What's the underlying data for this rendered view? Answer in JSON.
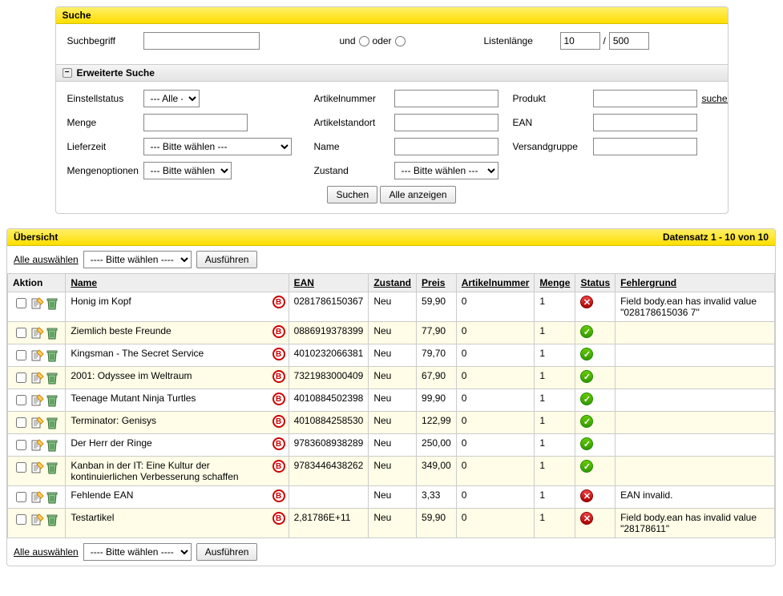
{
  "search": {
    "title": "Suche",
    "term_label": "Suchbegriff",
    "and_label": "und",
    "or_label": "oder",
    "listlen_label": "Listenlänge",
    "listlen_value": "10",
    "listlen_sep": "/",
    "listlen_max": "500",
    "adv_title": "Erweiterte Suche",
    "einstellstatus_label": "Einstellstatus",
    "einstellstatus_value": "--- Alle ----",
    "menge_label": "Menge",
    "lieferzeit_label": "Lieferzeit",
    "lieferzeit_value": "--- Bitte wählen ---",
    "mengenopt_label": "Mengenoptionen",
    "mengenopt_value": "--- Bitte wählen ---",
    "artikelnummer_label": "Artikelnummer",
    "artikelstandort_label": "Artikelstandort",
    "name_label": "Name",
    "zustand_label": "Zustand",
    "zustand_value": "--- Bitte wählen ---",
    "produkt_label": "Produkt",
    "ean_label": "EAN",
    "versandgruppe_label": "Versandgruppe",
    "suchen_link": "suchen",
    "btn_suchen": "Suchen",
    "btn_alle": "Alle anzeigen"
  },
  "overview": {
    "title": "Übersicht",
    "record_info": "Datensatz 1 - 10 von 10",
    "select_all": "Alle auswählen",
    "bulk_placeholder": "---- Bitte wählen ----",
    "btn_exec": "Ausführen",
    "cols": {
      "aktion": "Aktion",
      "name": "Name",
      "ean": "EAN",
      "zustand": "Zustand",
      "preis": "Preis",
      "artnr": "Artikelnummer",
      "menge": "Menge",
      "status": "Status",
      "fehler": "Fehlergrund"
    },
    "rows": [
      {
        "name": "Honig im Kopf",
        "ean": "0281786150367",
        "zustand": "Neu",
        "preis": "59,90",
        "artnr": "0",
        "menge": "1",
        "status": "err",
        "fehler": "Field body.ean has invalid value \"028178615036 7\""
      },
      {
        "name": "Ziemlich beste Freunde",
        "ean": "0886919378399",
        "zustand": "Neu",
        "preis": "77,90",
        "artnr": "0",
        "menge": "1",
        "status": "ok",
        "fehler": ""
      },
      {
        "name": "Kingsman - The Secret Service",
        "ean": "4010232066381",
        "zustand": "Neu",
        "preis": "79,70",
        "artnr": "0",
        "menge": "1",
        "status": "ok",
        "fehler": ""
      },
      {
        "name": "2001: Odyssee im Weltraum",
        "ean": "7321983000409",
        "zustand": "Neu",
        "preis": "67,90",
        "artnr": "0",
        "menge": "1",
        "status": "ok",
        "fehler": ""
      },
      {
        "name": "Teenage Mutant Ninja Turtles",
        "ean": "4010884502398",
        "zustand": "Neu",
        "preis": "99,90",
        "artnr": "0",
        "menge": "1",
        "status": "ok",
        "fehler": ""
      },
      {
        "name": "Terminator: Genisys",
        "ean": "4010884258530",
        "zustand": "Neu",
        "preis": "122,99",
        "artnr": "0",
        "menge": "1",
        "status": "ok",
        "fehler": ""
      },
      {
        "name": "Der Herr der Ringe",
        "ean": "9783608938289",
        "zustand": "Neu",
        "preis": "250,00",
        "artnr": "0",
        "menge": "1",
        "status": "ok",
        "fehler": ""
      },
      {
        "name": "Kanban in der IT: Eine Kultur der kontinuierlichen Verbesserung schaffen",
        "ean": "9783446438262",
        "zustand": "Neu",
        "preis": "349,00",
        "artnr": "0",
        "menge": "1",
        "status": "ok",
        "fehler": ""
      },
      {
        "name": "Fehlende EAN",
        "ean": "",
        "zustand": "Neu",
        "preis": "3,33",
        "artnr": "0",
        "menge": "1",
        "status": "err",
        "fehler": "EAN invalid."
      },
      {
        "name": "Testartikel",
        "ean": "2,81786E+11",
        "zustand": "Neu",
        "preis": "59,90",
        "artnr": "0",
        "menge": "1",
        "status": "err",
        "fehler": "Field body.ean has invalid value \"28178611\""
      }
    ]
  }
}
